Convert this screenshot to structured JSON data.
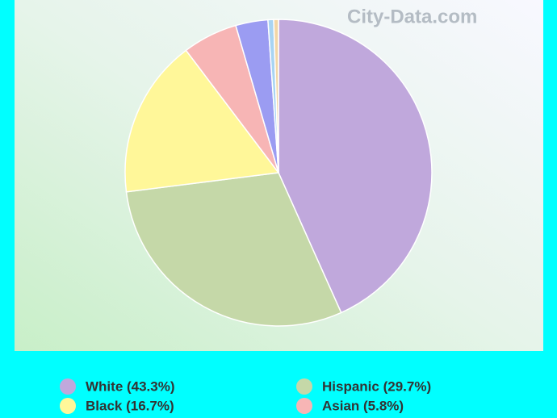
{
  "chart_data": {
    "type": "pie",
    "watermark": "City-Data.com",
    "categories": [
      "White (43.3%)",
      "Hispanic (29.7%)",
      "Black (16.7%)",
      "Asian (5.8%)",
      null,
      null,
      null
    ],
    "values": [
      43.3,
      29.7,
      16.7,
      5.8,
      3.4,
      0.6,
      0.5
    ],
    "colors": [
      "#c0a8dc",
      "#c5d8a8",
      "#fff799",
      "#f7b5b5",
      "#9b9cf2",
      "#a8d4f2",
      "#f2d6a6"
    ]
  }
}
